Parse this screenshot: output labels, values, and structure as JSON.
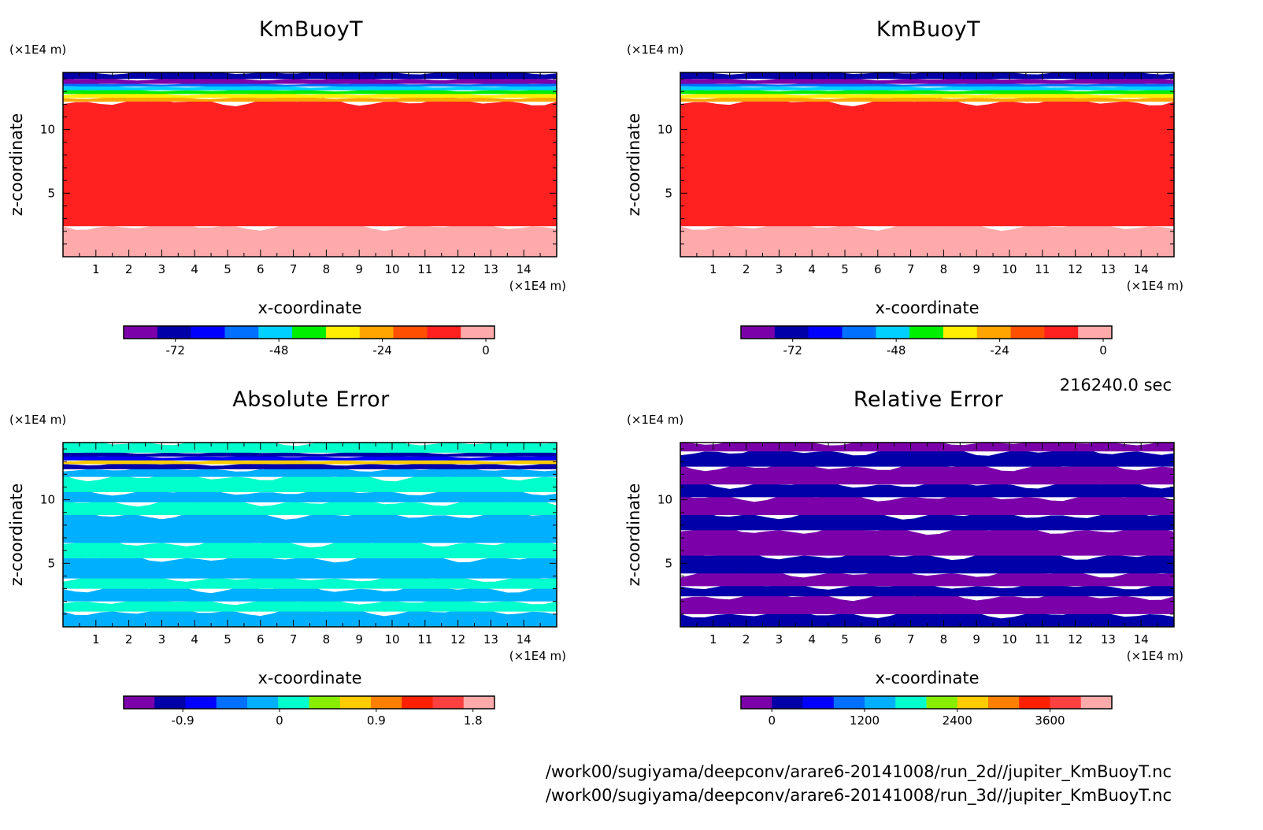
{
  "time_label": "216240.0 sec",
  "file_paths": [
    "/work00/sugiyama/deepconv/arare6-20141008/run_2d//jupiter_KmBuoyT.nc",
    "/work00/sugiyama/deepconv/arare6-20141008/run_3d//jupiter_KmBuoyT.nc"
  ],
  "chart_data": [
    {
      "type": "heatmap",
      "id": "kmbuoyt-2d",
      "title": "KmBuoyT",
      "xlabel": "x-coordinate",
      "ylabel": "z-coordinate",
      "x_unit": "(×1E4 m)",
      "y_unit": "(×1E4 m)",
      "xlim": [
        0,
        15
      ],
      "ylim": [
        0,
        14.5
      ],
      "xticks": [
        "1",
        "2",
        "3",
        "4",
        "5",
        "6",
        "7",
        "8",
        "9",
        "10",
        "11",
        "12",
        "13",
        "14"
      ],
      "yticks": [
        "5",
        "10"
      ],
      "colorbar": {
        "ticks": [
          "-72",
          "-48",
          "-24",
          "0"
        ],
        "tick_values": [
          -72,
          -48,
          -24,
          0
        ],
        "range": [
          -84,
          2
        ],
        "colors": [
          "#7b00aa",
          "#0000a8",
          "#0000ff",
          "#0070ff",
          "#00d0ff",
          "#00ee00",
          "#ffee00",
          "#ffa500",
          "#ff5000",
          "#ff2020",
          "#ffaaaa"
        ]
      },
      "bands": [
        {
          "z": [
            0,
            2.4
          ],
          "color": "#ffaaaa",
          "pattern": "light-bottom"
        },
        {
          "z": [
            2.4,
            12.2
          ],
          "color": "#ff2020"
        },
        {
          "z": [
            12.2,
            12.5
          ],
          "color": "#ffa500"
        },
        {
          "z": [
            12.5,
            12.8
          ],
          "color": "#ffee00"
        },
        {
          "z": [
            12.8,
            13.1
          ],
          "color": "#00ee00"
        },
        {
          "z": [
            13.1,
            13.4
          ],
          "color": "#00d0ff"
        },
        {
          "z": [
            13.4,
            13.6
          ],
          "color": "#0070ff"
        },
        {
          "z": [
            13.6,
            14.0
          ],
          "color": "#7b00aa"
        },
        {
          "z": [
            14.0,
            14.5
          ],
          "color": "#0000a8"
        }
      ]
    },
    {
      "type": "heatmap",
      "id": "kmbuoyt-3d",
      "title": "KmBuoyT",
      "xlabel": "x-coordinate",
      "ylabel": "z-coordinate",
      "x_unit": "(×1E4 m)",
      "y_unit": "(×1E4 m)",
      "xlim": [
        0,
        15
      ],
      "ylim": [
        0,
        14.5
      ],
      "xticks": [
        "1",
        "2",
        "3",
        "4",
        "5",
        "6",
        "7",
        "8",
        "9",
        "10",
        "11",
        "12",
        "13",
        "14"
      ],
      "yticks": [
        "5",
        "10"
      ],
      "colorbar": {
        "ticks": [
          "-72",
          "-48",
          "-24",
          "0"
        ],
        "tick_values": [
          -72,
          -48,
          -24,
          0
        ],
        "range": [
          -84,
          2
        ],
        "colors": [
          "#7b00aa",
          "#0000a8",
          "#0000ff",
          "#0070ff",
          "#00d0ff",
          "#00ee00",
          "#ffee00",
          "#ffa500",
          "#ff5000",
          "#ff2020",
          "#ffaaaa"
        ]
      },
      "bands": [
        {
          "z": [
            0,
            2.4
          ],
          "color": "#ffaaaa",
          "pattern": "light-bottom"
        },
        {
          "z": [
            2.4,
            12.2
          ],
          "color": "#ff2020"
        },
        {
          "z": [
            12.2,
            12.5
          ],
          "color": "#ffa500"
        },
        {
          "z": [
            12.5,
            12.8
          ],
          "color": "#ffee00"
        },
        {
          "z": [
            12.8,
            13.1
          ],
          "color": "#00ee00"
        },
        {
          "z": [
            13.1,
            13.4
          ],
          "color": "#00d0ff"
        },
        {
          "z": [
            13.4,
            13.6
          ],
          "color": "#0070ff"
        },
        {
          "z": [
            13.6,
            14.0
          ],
          "color": "#7b00aa"
        },
        {
          "z": [
            14.0,
            14.5
          ],
          "color": "#0000a8"
        }
      ]
    },
    {
      "type": "heatmap",
      "id": "absolute-error",
      "title": "Absolute Error",
      "xlabel": "x-coordinate",
      "ylabel": "z-coordinate",
      "x_unit": "(×1E4 m)",
      "y_unit": "(×1E4 m)",
      "xlim": [
        0,
        15
      ],
      "ylim": [
        0,
        14.5
      ],
      "xticks": [
        "1",
        "2",
        "3",
        "4",
        "5",
        "6",
        "7",
        "8",
        "9",
        "10",
        "11",
        "12",
        "13",
        "14"
      ],
      "yticks": [
        "5",
        "10"
      ],
      "colorbar": {
        "ticks": [
          "-0.9",
          "0",
          "0.9",
          "1.8"
        ],
        "tick_values": [
          -0.9,
          0,
          0.9,
          1.8
        ],
        "range": [
          -1.45,
          2.0
        ],
        "colors": [
          "#7b00aa",
          "#0000a8",
          "#0000ff",
          "#0070ff",
          "#00b0ff",
          "#00ffcc",
          "#88ee00",
          "#ffcc00",
          "#ff8000",
          "#ff2000",
          "#ff4040",
          "#ffaaaa"
        ]
      },
      "bands": [
        {
          "z": [
            0,
            1.2
          ],
          "color": "#00b0ff"
        },
        {
          "z": [
            1.2,
            2.0
          ],
          "color": "#00ffcc"
        },
        {
          "z": [
            2.0,
            3.0
          ],
          "color": "#00b0ff"
        },
        {
          "z": [
            3.0,
            3.8
          ],
          "color": "#00ffcc"
        },
        {
          "z": [
            3.8,
            5.4
          ],
          "color": "#00b0ff"
        },
        {
          "z": [
            5.4,
            6.6
          ],
          "color": "#00ffcc"
        },
        {
          "z": [
            6.6,
            8.8
          ],
          "color": "#00b0ff"
        },
        {
          "z": [
            8.8,
            9.8
          ],
          "color": "#00ffcc"
        },
        {
          "z": [
            9.8,
            10.6
          ],
          "color": "#00b0ff"
        },
        {
          "z": [
            10.6,
            11.8
          ],
          "color": "#00ffcc"
        },
        {
          "z": [
            11.8,
            12.4
          ],
          "color": "#00b0ff"
        },
        {
          "z": [
            12.4,
            12.8
          ],
          "color": "#0000a8"
        },
        {
          "z": [
            12.8,
            13.1
          ],
          "color": "#ffcc00"
        },
        {
          "z": [
            13.1,
            13.4
          ],
          "color": "#0000ff"
        },
        {
          "z": [
            13.4,
            13.7
          ],
          "color": "#0000a8"
        },
        {
          "z": [
            13.7,
            14.5
          ],
          "color": "#00ffcc"
        }
      ]
    },
    {
      "type": "heatmap",
      "id": "relative-error",
      "title": "Relative Error",
      "xlabel": "x-coordinate",
      "ylabel": "z-coordinate",
      "x_unit": "(×1E4 m)",
      "y_unit": "(×1E4 m)",
      "xlim": [
        0,
        15
      ],
      "ylim": [
        0,
        14.5
      ],
      "xticks": [
        "1",
        "2",
        "3",
        "4",
        "5",
        "6",
        "7",
        "8",
        "9",
        "10",
        "11",
        "12",
        "13",
        "14"
      ],
      "yticks": [
        "5",
        "10"
      ],
      "colorbar": {
        "ticks": [
          "0",
          "1200",
          "2400",
          "3600"
        ],
        "tick_values": [
          0,
          1200,
          2400,
          3600
        ],
        "range": [
          -400,
          4400
        ],
        "colors": [
          "#7b00aa",
          "#0000a8",
          "#0000ff",
          "#0070ff",
          "#00b0ff",
          "#00ffcc",
          "#88ee00",
          "#ffcc00",
          "#ff8000",
          "#ff2000",
          "#ff4040",
          "#ffaaaa"
        ]
      },
      "bands": [
        {
          "z": [
            0,
            1.0
          ],
          "color": "#0000a8"
        },
        {
          "z": [
            1.0,
            2.4
          ],
          "color": "#7b00aa"
        },
        {
          "z": [
            2.4,
            3.2
          ],
          "color": "#0000a8"
        },
        {
          "z": [
            3.2,
            4.2
          ],
          "color": "#7b00aa"
        },
        {
          "z": [
            4.2,
            5.6
          ],
          "color": "#0000a8"
        },
        {
          "z": [
            5.6,
            7.6
          ],
          "color": "#7b00aa"
        },
        {
          "z": [
            7.6,
            8.8
          ],
          "color": "#0000a8"
        },
        {
          "z": [
            8.8,
            10.2
          ],
          "color": "#7b00aa"
        },
        {
          "z": [
            10.2,
            11.2
          ],
          "color": "#0000a8"
        },
        {
          "z": [
            11.2,
            12.6
          ],
          "color": "#7b00aa"
        },
        {
          "z": [
            12.6,
            13.8
          ],
          "color": "#0000a8"
        },
        {
          "z": [
            13.8,
            14.5
          ],
          "color": "#7b00aa"
        }
      ]
    }
  ]
}
